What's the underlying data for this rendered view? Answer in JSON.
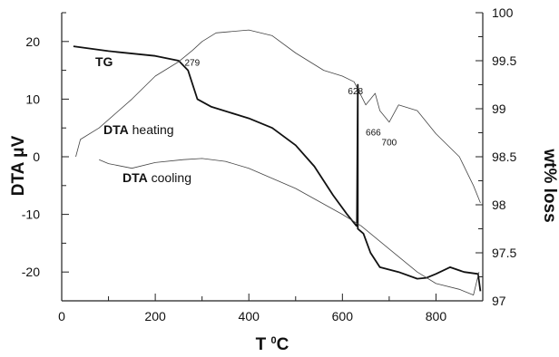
{
  "chart_data": {
    "type": "line",
    "title": "",
    "xlabel": "T ",
    "xlabel_sup": "0",
    "xlabel_unit": "C",
    "ylabel_left": "DTA ",
    "ylabel_left_unit": "μV",
    "ylabel_right": "wt% loss",
    "xlim": [
      0,
      900
    ],
    "ylim_left": [
      -25,
      25
    ],
    "ylim_right": [
      97,
      100
    ],
    "x_ticks": [
      "0",
      "200",
      "400",
      "600",
      "800"
    ],
    "y_left_ticks": [
      "-20",
      "-10",
      "0",
      "10",
      "20"
    ],
    "y_right_ticks": [
      "97",
      "97.5",
      "98",
      "98.5",
      "99",
      "99.5",
      "100"
    ],
    "grid": false,
    "legend": "none",
    "series": [
      {
        "name": "TG",
        "name_bold": "TG",
        "name_rest": "",
        "axis": "right",
        "color": "#111111",
        "stroke": "thick",
        "points": [
          [
            25,
            99.65
          ],
          [
            100,
            99.6
          ],
          [
            200,
            99.55
          ],
          [
            250,
            99.5
          ],
          [
            270,
            99.4
          ],
          [
            290,
            99.1
          ],
          [
            320,
            99.02
          ],
          [
            400,
            98.9
          ],
          [
            450,
            98.8
          ],
          [
            500,
            98.62
          ],
          [
            540,
            98.4
          ],
          [
            580,
            98.1
          ],
          [
            610,
            97.9
          ],
          [
            630,
            97.78
          ],
          [
            631,
            97.78
          ],
          [
            633,
            99.25
          ],
          [
            633,
            97.75
          ],
          [
            645,
            97.7
          ],
          [
            660,
            97.5
          ],
          [
            680,
            97.35
          ],
          [
            720,
            97.3
          ],
          [
            760,
            97.23
          ],
          [
            780,
            97.24
          ],
          [
            800,
            97.28
          ],
          [
            830,
            97.35
          ],
          [
            860,
            97.3
          ],
          [
            890,
            97.28
          ],
          [
            895,
            97.1
          ]
        ]
      },
      {
        "name": "DTA heating",
        "name_bold": "DTA",
        "name_rest": " heating",
        "axis": "left",
        "color": "#444444",
        "stroke": "thin",
        "points": [
          [
            30,
            0
          ],
          [
            40,
            3
          ],
          [
            80,
            5
          ],
          [
            150,
            10
          ],
          [
            200,
            14
          ],
          [
            250,
            16.5
          ],
          [
            280,
            18.5
          ],
          [
            300,
            20
          ],
          [
            330,
            21.5
          ],
          [
            400,
            22
          ],
          [
            450,
            21
          ],
          [
            500,
            18
          ],
          [
            560,
            15
          ],
          [
            600,
            14
          ],
          [
            625,
            13
          ],
          [
            650,
            9
          ],
          [
            670,
            11
          ],
          [
            680,
            8
          ],
          [
            700,
            6
          ],
          [
            720,
            9
          ],
          [
            760,
            8
          ],
          [
            800,
            4
          ],
          [
            850,
            0
          ],
          [
            880,
            -5
          ],
          [
            895,
            -8
          ]
        ]
      },
      {
        "name": "DTA cooling",
        "name_bold": "DTA",
        "name_rest": " cooling",
        "axis": "left",
        "color": "#444444",
        "stroke": "thin",
        "points": [
          [
            80,
            -0.5
          ],
          [
            100,
            -1.2
          ],
          [
            150,
            -2
          ],
          [
            200,
            -1
          ],
          [
            260,
            -0.5
          ],
          [
            300,
            -0.3
          ],
          [
            350,
            -0.8
          ],
          [
            400,
            -2
          ],
          [
            500,
            -5.5
          ],
          [
            600,
            -10
          ],
          [
            640,
            -12
          ],
          [
            700,
            -16
          ],
          [
            760,
            -20
          ],
          [
            800,
            -22
          ],
          [
            850,
            -23
          ],
          [
            880,
            -24
          ],
          [
            892,
            -20
          ]
        ]
      }
    ],
    "annotations": [
      {
        "text": "279",
        "x": 279,
        "y_right": 99.45
      },
      {
        "text": "628",
        "x": 628,
        "y_right": 99.15
      },
      {
        "text": "666",
        "x": 666,
        "y_right": 98.72
      },
      {
        "text": "700",
        "x": 700,
        "y_right": 98.62
      }
    ]
  }
}
